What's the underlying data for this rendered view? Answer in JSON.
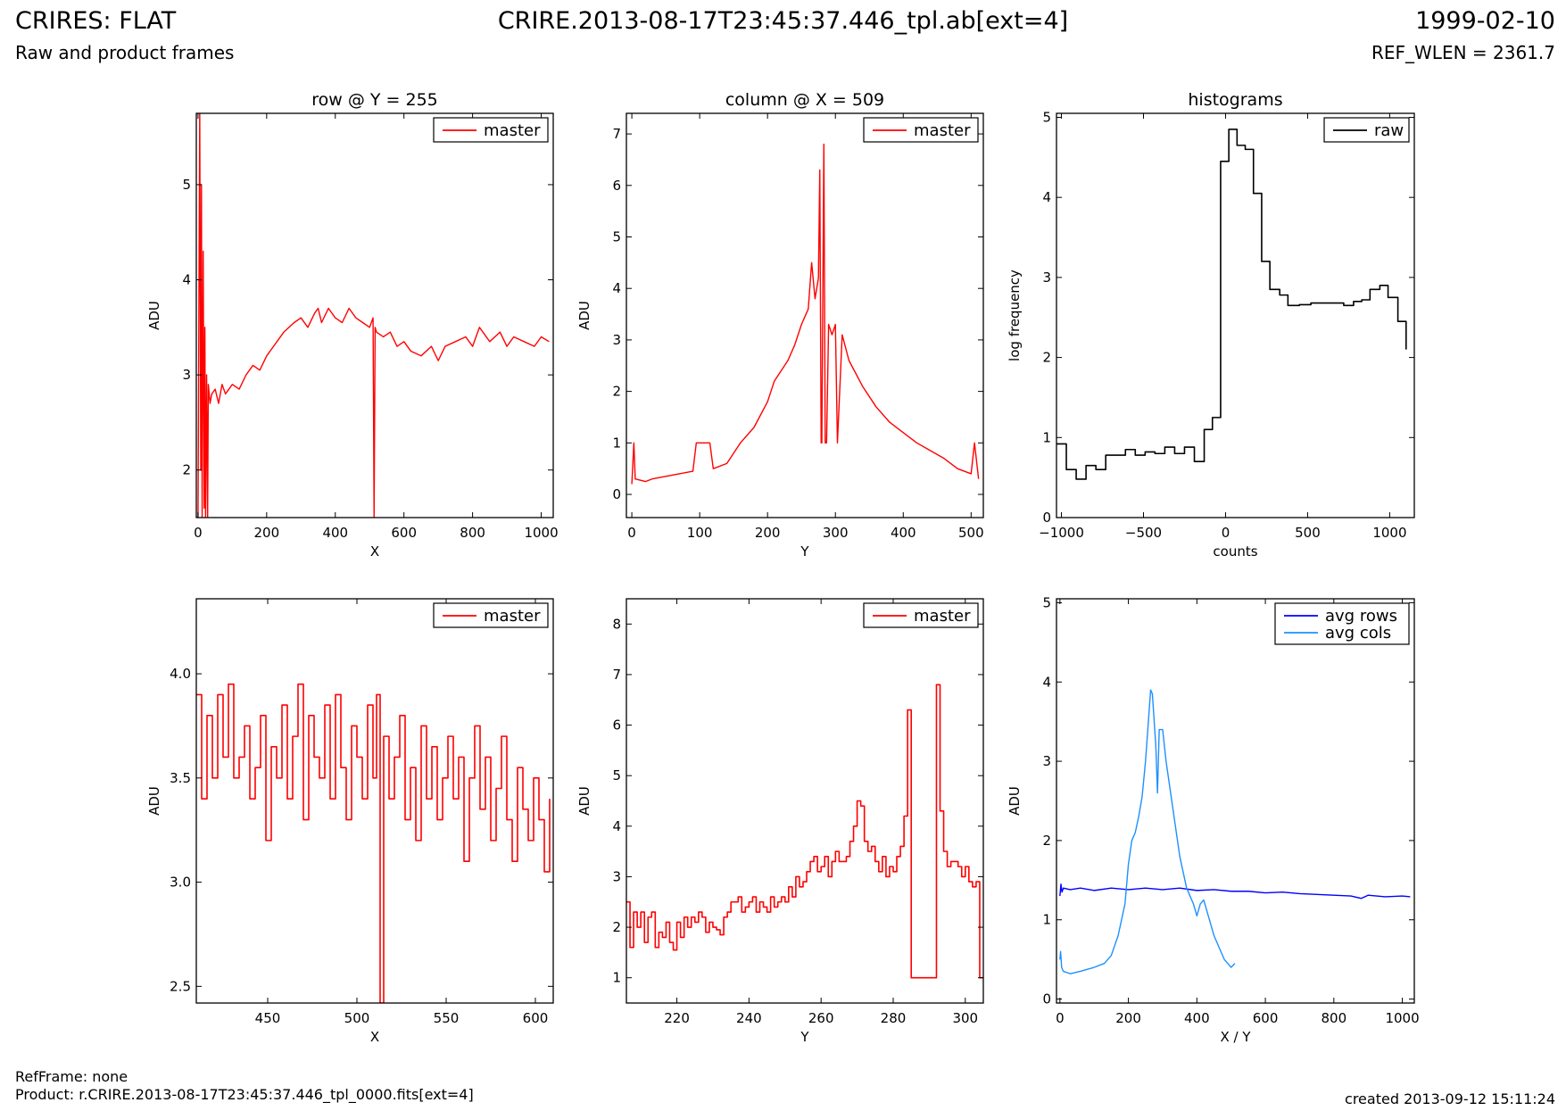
{
  "header": {
    "title": "CRIRES: FLAT",
    "subtitle": "Raw and product frames",
    "center": "CRIRE.2013-08-17T23:45:37.446_tpl.ab[ext=4]",
    "date": "1999-02-10",
    "ref_wlen": "REF_WLEN = 2361.7"
  },
  "footer": {
    "ref_frame": "RefFrame: none",
    "product": "Product: r.CRIRE.2013-08-17T23:45:37.446_tpl_0000.fits[ext=4]",
    "created": "created 2013-09-12 15:11:24"
  },
  "colors": {
    "master": "#ff0000",
    "raw": "#000000",
    "avg_rows": "#0000ff",
    "avg_cols": "#1e90ff"
  },
  "chart_data": [
    {
      "type": "line",
      "title": "row @ Y = 255",
      "xlabel": "X",
      "ylabel": "ADU",
      "xlim": [
        -5,
        1035
      ],
      "ylim": [
        1.5,
        5.75
      ],
      "xticks": [
        0,
        200,
        400,
        600,
        800,
        1000
      ],
      "yticks": [
        2,
        3,
        4,
        5
      ],
      "legend": "top-right",
      "series": [
        {
          "name": "master",
          "color": "#ff0000",
          "x": [
            0,
            5,
            8,
            10,
            12,
            15,
            18,
            20,
            22,
            25,
            28,
            30,
            35,
            40,
            50,
            60,
            70,
            80,
            100,
            120,
            140,
            160,
            180,
            200,
            220,
            250,
            280,
            300,
            320,
            340,
            350,
            360,
            380,
            400,
            420,
            440,
            460,
            480,
            500,
            510,
            513,
            516,
            520,
            540,
            560,
            580,
            600,
            620,
            650,
            680,
            700,
            720,
            750,
            780,
            800,
            820,
            850,
            880,
            900,
            920,
            950,
            980,
            1000,
            1023
          ],
          "y": [
            1.5,
            5.8,
            2.0,
            5.0,
            1.5,
            4.3,
            1.6,
            3.5,
            1.5,
            3.0,
            1.5,
            2.9,
            2.7,
            2.8,
            2.85,
            2.7,
            2.9,
            2.8,
            2.9,
            2.85,
            3.0,
            3.1,
            3.05,
            3.2,
            3.3,
            3.45,
            3.55,
            3.6,
            3.5,
            3.65,
            3.7,
            3.55,
            3.7,
            3.6,
            3.55,
            3.7,
            3.6,
            3.55,
            3.5,
            3.6,
            1.5,
            3.5,
            3.45,
            3.4,
            3.45,
            3.3,
            3.35,
            3.25,
            3.2,
            3.3,
            3.15,
            3.3,
            3.35,
            3.4,
            3.3,
            3.5,
            3.35,
            3.45,
            3.3,
            3.4,
            3.35,
            3.3,
            3.4,
            3.35
          ]
        }
      ]
    },
    {
      "type": "line",
      "title": "column @ X = 509",
      "xlabel": "Y",
      "ylabel": "ADU",
      "xlim": [
        -8,
        518
      ],
      "ylim": [
        -0.45,
        7.4
      ],
      "xticks": [
        0,
        100,
        200,
        300,
        400,
        500
      ],
      "yticks": [
        0,
        1,
        2,
        3,
        4,
        5,
        6,
        7
      ],
      "legend": "top-right",
      "series": [
        {
          "name": "master",
          "color": "#ff0000",
          "x": [
            0,
            3,
            5,
            20,
            30,
            50,
            70,
            90,
            95,
            115,
            120,
            140,
            160,
            180,
            200,
            210,
            220,
            230,
            240,
            250,
            260,
            265,
            270,
            275,
            277,
            279,
            280,
            283,
            285,
            287,
            290,
            295,
            300,
            303,
            310,
            320,
            340,
            360,
            380,
            400,
            420,
            440,
            460,
            480,
            500,
            505,
            511
          ],
          "y": [
            0.2,
            1.0,
            0.3,
            0.25,
            0.3,
            0.35,
            0.4,
            0.45,
            1.0,
            1.0,
            0.5,
            0.6,
            1.0,
            1.3,
            1.8,
            2.2,
            2.4,
            2.6,
            2.9,
            3.3,
            3.6,
            4.5,
            3.8,
            4.2,
            6.3,
            1.0,
            1.0,
            6.8,
            1.0,
            1.0,
            3.3,
            3.1,
            3.3,
            1.0,
            3.1,
            2.6,
            2.1,
            1.7,
            1.4,
            1.2,
            1.0,
            0.85,
            0.7,
            0.5,
            0.4,
            1.0,
            0.3
          ]
        }
      ]
    },
    {
      "type": "line",
      "title": "histograms",
      "xlabel": "counts",
      "ylabel": "log frequency",
      "xlim": [
        -1030,
        1150
      ],
      "ylim": [
        0,
        5.05
      ],
      "xticks": [
        -1000,
        -500,
        0,
        500,
        1000
      ],
      "yticks": [
        0,
        1,
        2,
        3,
        4,
        5
      ],
      "legend": "top-right",
      "step": true,
      "series": [
        {
          "name": "raw",
          "color": "#000000",
          "x": [
            -1030,
            -970,
            -910,
            -850,
            -790,
            -730,
            -670,
            -610,
            -550,
            -490,
            -430,
            -370,
            -310,
            -250,
            -190,
            -130,
            -80,
            -30,
            20,
            70,
            120,
            170,
            220,
            270,
            330,
            380,
            450,
            520,
            580,
            650,
            720,
            780,
            830,
            880,
            940,
            990,
            1050,
            1100
          ],
          "y": [
            0.92,
            0.6,
            0.48,
            0.65,
            0.6,
            0.78,
            0.78,
            0.85,
            0.78,
            0.82,
            0.8,
            0.88,
            0.8,
            0.88,
            0.7,
            1.1,
            1.25,
            4.45,
            4.85,
            4.65,
            4.6,
            4.05,
            3.2,
            2.85,
            2.78,
            2.65,
            2.66,
            2.68,
            2.68,
            2.68,
            2.65,
            2.7,
            2.72,
            2.85,
            2.9,
            2.75,
            2.45,
            2.1
          ]
        }
      ]
    },
    {
      "type": "line",
      "xlabel": "X",
      "ylabel": "ADU",
      "xlim": [
        410,
        610
      ],
      "ylim": [
        2.42,
        4.36
      ],
      "xticks": [
        450,
        500,
        550,
        600
      ],
      "yticks": [
        2.5,
        3.0,
        3.5,
        4.0
      ],
      "legend": "top-right",
      "step": true,
      "series": [
        {
          "name": "master",
          "color": "#ff0000",
          "x": [
            410,
            413,
            416,
            419,
            422,
            425,
            428,
            431,
            434,
            437,
            440,
            443,
            446,
            449,
            452,
            455,
            458,
            461,
            464,
            467,
            470,
            473,
            476,
            479,
            482,
            485,
            488,
            491,
            494,
            497,
            500,
            503,
            506,
            509,
            511,
            513,
            515,
            518,
            521,
            524,
            527,
            530,
            533,
            536,
            539,
            542,
            545,
            548,
            551,
            554,
            557,
            560,
            563,
            566,
            569,
            572,
            575,
            578,
            581,
            584,
            587,
            590,
            593,
            596,
            599,
            602,
            605,
            608
          ],
          "y": [
            3.9,
            3.4,
            3.8,
            3.5,
            3.9,
            3.6,
            3.95,
            3.5,
            3.6,
            3.75,
            3.4,
            3.55,
            3.8,
            3.2,
            3.65,
            3.5,
            3.85,
            3.4,
            3.7,
            3.95,
            3.3,
            3.8,
            3.6,
            3.5,
            3.85,
            3.4,
            3.9,
            3.55,
            3.3,
            3.75,
            3.6,
            3.4,
            3.85,
            3.5,
            3.9,
            2.42,
            3.7,
            3.4,
            3.6,
            3.8,
            3.3,
            3.55,
            3.2,
            3.75,
            3.4,
            3.65,
            3.3,
            3.5,
            3.7,
            3.4,
            3.6,
            3.1,
            3.5,
            3.75,
            3.35,
            3.6,
            3.2,
            3.45,
            3.7,
            3.3,
            3.1,
            3.55,
            3.35,
            3.2,
            3.5,
            3.3,
            3.05,
            3.4
          ]
        }
      ]
    },
    {
      "type": "line",
      "xlabel": "Y",
      "ylabel": "ADU",
      "xlim": [
        206,
        305
      ],
      "ylim": [
        0.5,
        8.5
      ],
      "xticks": [
        220,
        240,
        260,
        280,
        300
      ],
      "yticks": [
        1,
        2,
        3,
        4,
        5,
        6,
        7,
        8
      ],
      "legend": "top-right",
      "step": true,
      "series": [
        {
          "name": "master",
          "color": "#ff0000",
          "x": [
            206,
            207,
            208,
            209,
            210,
            211,
            212,
            213,
            214,
            215,
            216,
            217,
            218,
            219,
            220,
            221,
            222,
            223,
            224,
            225,
            226,
            227,
            228,
            229,
            230,
            231,
            232,
            233,
            234,
            235,
            236,
            237,
            238,
            239,
            240,
            241,
            242,
            243,
            244,
            245,
            246,
            247,
            248,
            249,
            250,
            251,
            252,
            253,
            254,
            255,
            256,
            257,
            258,
            259,
            260,
            261,
            262,
            263,
            264,
            265,
            266,
            267,
            268,
            269,
            270,
            271,
            272,
            273,
            274,
            275,
            276,
            277,
            278,
            279,
            280,
            281,
            282,
            283,
            284,
            285,
            286,
            287,
            288,
            289,
            290,
            291,
            292,
            293,
            294,
            295,
            296,
            297,
            298,
            299,
            300,
            301,
            302,
            303,
            304,
            305
          ],
          "y": [
            2.5,
            1.6,
            2.3,
            2.0,
            2.3,
            1.7,
            2.2,
            2.3,
            1.6,
            1.9,
            1.8,
            2.1,
            1.7,
            1.55,
            2.1,
            1.8,
            2.2,
            2.0,
            2.2,
            2.1,
            2.3,
            2.2,
            1.9,
            2.1,
            2.0,
            1.95,
            1.85,
            2.2,
            2.3,
            2.5,
            2.5,
            2.6,
            2.3,
            2.4,
            2.5,
            2.6,
            2.3,
            2.5,
            2.4,
            2.3,
            2.6,
            2.4,
            2.5,
            2.6,
            2.5,
            2.8,
            2.6,
            3.0,
            2.8,
            2.9,
            3.1,
            3.3,
            3.4,
            3.1,
            3.2,
            3.4,
            3.0,
            3.3,
            3.5,
            3.3,
            3.3,
            3.4,
            3.7,
            4.0,
            4.5,
            4.4,
            3.7,
            3.5,
            3.6,
            3.3,
            3.1,
            3.4,
            3.0,
            3.2,
            3.1,
            3.4,
            3.6,
            4.2,
            6.3,
            1.0,
            1.0,
            1.0,
            1.0,
            1.0,
            1.0,
            1.0,
            6.8,
            4.3,
            3.5,
            3.2,
            3.3,
            3.3,
            3.2,
            3.0,
            3.2,
            2.9,
            2.8,
            2.9,
            1.0,
            1.0
          ]
        }
      ]
    },
    {
      "type": "line",
      "xlabel": "X / Y",
      "ylabel": "ADU",
      "xlim": [
        -10,
        1035
      ],
      "ylim": [
        -0.05,
        5.05
      ],
      "xticks": [
        0,
        200,
        400,
        600,
        800,
        1000
      ],
      "yticks": [
        0,
        1,
        2,
        3,
        4,
        5
      ],
      "legend": "top-right",
      "series": [
        {
          "name": "avg rows",
          "color": "#0000ff",
          "x": [
            0,
            3,
            6,
            10,
            30,
            60,
            100,
            150,
            200,
            250,
            300,
            350,
            400,
            450,
            500,
            550,
            600,
            650,
            700,
            750,
            800,
            850,
            880,
            900,
            950,
            1000,
            1023
          ],
          "y": [
            1.3,
            1.45,
            1.35,
            1.4,
            1.38,
            1.4,
            1.37,
            1.4,
            1.38,
            1.4,
            1.38,
            1.4,
            1.37,
            1.38,
            1.36,
            1.36,
            1.34,
            1.35,
            1.33,
            1.32,
            1.31,
            1.3,
            1.27,
            1.31,
            1.29,
            1.3,
            1.29
          ]
        },
        {
          "name": "avg cols",
          "color": "#1e90ff",
          "x": [
            0,
            2,
            5,
            10,
            30,
            60,
            100,
            130,
            150,
            170,
            190,
            200,
            210,
            220,
            230,
            240,
            250,
            260,
            265,
            270,
            280,
            285,
            290,
            300,
            310,
            320,
            330,
            340,
            350,
            360,
            370,
            380,
            390,
            400,
            410,
            420,
            430,
            440,
            450,
            460,
            470,
            480,
            490,
            500,
            511
          ],
          "y": [
            0.5,
            0.6,
            0.4,
            0.35,
            0.32,
            0.35,
            0.4,
            0.45,
            0.55,
            0.8,
            1.2,
            1.7,
            2.0,
            2.1,
            2.3,
            2.55,
            3.0,
            3.6,
            3.9,
            3.85,
            3.2,
            2.6,
            3.4,
            3.4,
            3.0,
            2.7,
            2.4,
            2.1,
            1.8,
            1.6,
            1.4,
            1.3,
            1.2,
            1.05,
            1.2,
            1.25,
            1.1,
            0.95,
            0.8,
            0.7,
            0.6,
            0.5,
            0.45,
            0.4,
            0.45
          ]
        }
      ]
    }
  ]
}
